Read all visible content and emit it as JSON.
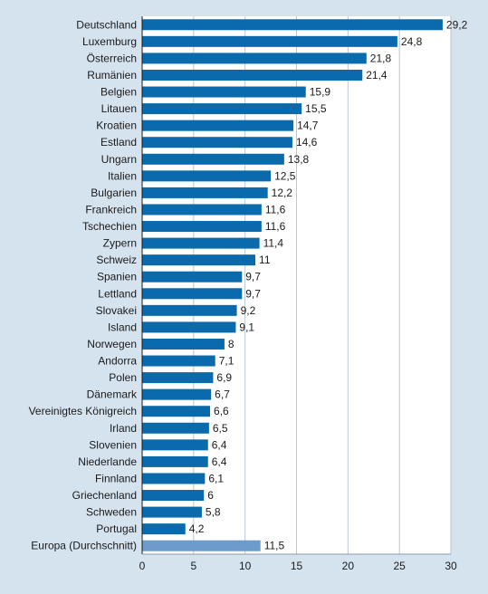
{
  "colors": {
    "background": "#d5e3ef",
    "plot_background": "#ffffff",
    "bar": "#0a6aab",
    "highlight_bar": "#6c9bcc",
    "grid": "#b9c7d6"
  },
  "chart_data": {
    "type": "bar",
    "orientation": "horizontal",
    "title": "",
    "xlabel": "",
    "ylabel": "",
    "grid": true,
    "xlim": [
      0,
      30
    ],
    "xticks": [
      0,
      5,
      10,
      15,
      20,
      25,
      30
    ],
    "categories": [
      "Deutschland",
      "Luxemburg",
      "Österreich",
      "Rumänien",
      "Belgien",
      "Litauen",
      "Kroatien",
      "Estland",
      "Ungarn",
      "Italien",
      "Bulgarien",
      "Frankreich",
      "Tschechien",
      "Zypern",
      "Schweiz",
      "Spanien",
      "Lettland",
      "Slovakei",
      "Island",
      "Norwegen",
      "Andorra",
      "Polen",
      "Dänemark",
      "Vereinigtes Königreich",
      "Irland",
      "Slovenien",
      "Niederlande",
      "Finnland",
      "Griechenland",
      "Schweden",
      "Portugal",
      "Europa (Durchschnitt)"
    ],
    "values": [
      29.2,
      24.8,
      21.8,
      21.4,
      15.9,
      15.5,
      14.7,
      14.6,
      13.8,
      12.5,
      12.2,
      11.6,
      11.6,
      11.4,
      11,
      9.7,
      9.7,
      9.2,
      9.1,
      8,
      7.1,
      6.9,
      6.7,
      6.6,
      6.5,
      6.4,
      6.4,
      6.1,
      6,
      5.8,
      4.2,
      11.5
    ],
    "value_labels": [
      "29,2",
      "24,8",
      "21,8",
      "21,4",
      "15,9",
      "15,5",
      "14,7",
      "14,6",
      "13,8",
      "12,5",
      "12,2",
      "11,6",
      "11,6",
      "11,4",
      "11",
      "9,7",
      "9,7",
      "9,2",
      "9,1",
      "8",
      "7,1",
      "6,9",
      "6,7",
      "6,6",
      "6,5",
      "6,4",
      "6,4",
      "6,1",
      "6",
      "5,8",
      "4,2",
      "11,5"
    ],
    "highlight": "Europa (Durchschnitt)"
  }
}
